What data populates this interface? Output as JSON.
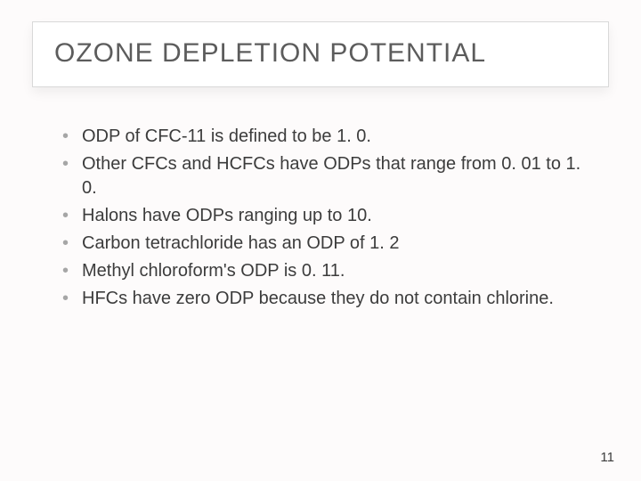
{
  "slide": {
    "title": "OZONE DEPLETION POTENTIAL",
    "bullets": [
      "ODP of CFC-11 is defined to be 1. 0.",
      "Other CFCs and HCFCs have ODPs that range from 0. 01 to 1. 0.",
      "Halons have ODPs ranging up to 10.",
      "Carbon tetrachloride has an ODP of 1. 2",
      "Methyl chloroform's ODP is 0. 11.",
      "HFCs have zero ODP because they do not contain chlorine."
    ],
    "page_number": "11"
  },
  "style": {
    "background_color": "#fdfbfb",
    "title_box_bg": "#ffffff",
    "title_box_border": "#d9d9d9",
    "title_color": "#5c5c5c",
    "title_fontsize": 30,
    "bullet_color": "#a6a6a6",
    "text_color": "#3c3c3c",
    "body_fontsize": 20,
    "page_number_fontsize": 15
  }
}
